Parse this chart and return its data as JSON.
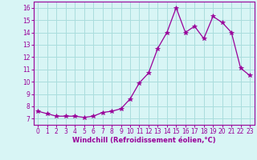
{
  "x": [
    0,
    1,
    2,
    3,
    4,
    5,
    6,
    7,
    8,
    9,
    10,
    11,
    12,
    13,
    14,
    15,
    16,
    17,
    18,
    19,
    20,
    21,
    22,
    23
  ],
  "y": [
    7.6,
    7.4,
    7.2,
    7.2,
    7.2,
    7.1,
    7.2,
    7.5,
    7.6,
    7.8,
    8.6,
    9.9,
    10.7,
    12.7,
    14.0,
    16.0,
    14.0,
    14.5,
    13.5,
    15.3,
    14.8,
    14.0,
    11.1,
    10.5
  ],
  "line_color": "#990099",
  "marker": "*",
  "marker_size": 4,
  "bg_color": "#d8f5f5",
  "grid_color": "#aadddd",
  "xlabel": "Windchill (Refroidissement éolien,°C)",
  "xlim": [
    -0.5,
    23.5
  ],
  "ylim": [
    6.5,
    16.5
  ],
  "yticks": [
    7,
    8,
    9,
    10,
    11,
    12,
    13,
    14,
    15,
    16
  ],
  "xticks": [
    0,
    1,
    2,
    3,
    4,
    5,
    6,
    7,
    8,
    9,
    10,
    11,
    12,
    13,
    14,
    15,
    16,
    17,
    18,
    19,
    20,
    21,
    22,
    23
  ]
}
